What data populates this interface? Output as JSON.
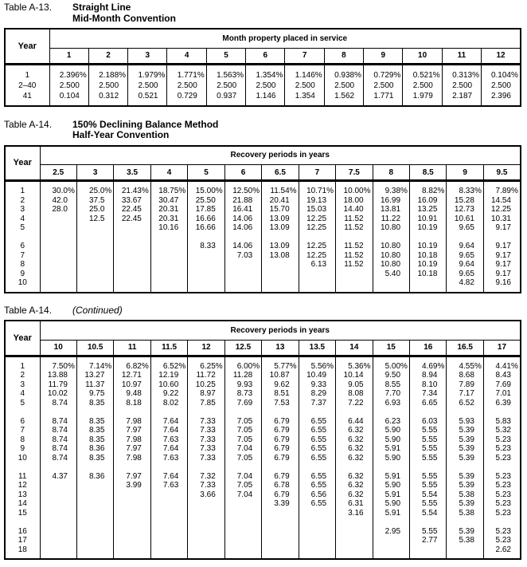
{
  "page": {
    "background": "#ffffff",
    "text_color": "#000000"
  },
  "tables": [
    {
      "id": "a13",
      "label": "Table A-13.",
      "title_lines": [
        "Straight Line",
        "Mid-Month Convention"
      ],
      "year_header": "Year",
      "span_header": "Month property placed in service",
      "columns": [
        "1",
        "2",
        "3",
        "4",
        "5",
        "6",
        "7",
        "8",
        "9",
        "10",
        "11",
        "12"
      ],
      "rows": [
        {
          "year": "1",
          "values": [
            "2.396%",
            "2.188%",
            "1.979%",
            "1.771%",
            "1.563%",
            "1.354%",
            "1.146%",
            "0.938%",
            "0.729%",
            "0.521%",
            "0.313%",
            "0.104%"
          ]
        },
        {
          "year": "2–40",
          "values": [
            "2.500",
            "2.500",
            "2.500",
            "2.500",
            "2.500",
            "2.500",
            "2.500",
            "2.500",
            "2.500",
            "2.500",
            "2.500",
            "2.500"
          ]
        },
        {
          "year": "41",
          "values": [
            "0.104",
            "0.312",
            "0.521",
            "0.729",
            "0.937",
            "1.146",
            "1.354",
            "1.562",
            "1.771",
            "1.979",
            "2.187",
            "2.396"
          ]
        }
      ]
    },
    {
      "id": "a14",
      "label": "Table A-14.",
      "title_lines": [
        "150% Declining Balance Method",
        "Half-Year Convention"
      ],
      "year_header": "Year",
      "span_header": "Recovery periods in years",
      "columns": [
        "2.5",
        "3",
        "3.5",
        "4",
        "5",
        "6",
        "6.5",
        "7",
        "7.5",
        "8",
        "8.5",
        "9",
        "9.5"
      ],
      "rows": [
        {
          "year": "1",
          "values": [
            "30.0%",
            "25.0%",
            "21.43%",
            "18.75%",
            "15.00%",
            "12.50%",
            "11.54%",
            "10.71%",
            "10.00%",
            "9.38%",
            "8.82%",
            "8.33%",
            "7.89%"
          ]
        },
        {
          "year": "2",
          "values": [
            "42.0",
            "37.5",
            "33.67",
            "30.47",
            "25.50",
            "21.88",
            "20.41",
            "19.13",
            "18.00",
            "16.99",
            "16.09",
            "15.28",
            "14.54"
          ]
        },
        {
          "year": "3",
          "values": [
            "28.0",
            "25.0",
            "22.45",
            "20.31",
            "17.85",
            "16.41",
            "15.70",
            "15.03",
            "14.40",
            "13.81",
            "13.25",
            "12.73",
            "12.25"
          ]
        },
        {
          "year": "4",
          "values": [
            "",
            "12.5",
            "22.45",
            "20.31",
            "16.66",
            "14.06",
            "13.09",
            "12.25",
            "11.52",
            "11.22",
            "10.91",
            "10.61",
            "10.31"
          ]
        },
        {
          "year": "5",
          "values": [
            "",
            "",
            "",
            "10.16",
            "16.66",
            "14.06",
            "13.09",
            "12.25",
            "11.52",
            "10.80",
            "10.19",
            "9.65",
            "9.17"
          ]
        },
        {
          "gap": true
        },
        {
          "year": "6",
          "values": [
            "",
            "",
            "",
            "",
            "8.33",
            "14.06",
            "13.09",
            "12.25",
            "11.52",
            "10.80",
            "10.19",
            "9.64",
            "9.17"
          ]
        },
        {
          "year": "7",
          "values": [
            "",
            "",
            "",
            "",
            "",
            "7.03",
            "13.08",
            "12.25",
            "11.52",
            "10.80",
            "10.18",
            "9.65",
            "9.17"
          ]
        },
        {
          "year": "8",
          "values": [
            "",
            "",
            "",
            "",
            "",
            "",
            "",
            "6.13",
            "11.52",
            "10.80",
            "10.19",
            "9.64",
            "9.17"
          ]
        },
        {
          "year": "9",
          "values": [
            "",
            "",
            "",
            "",
            "",
            "",
            "",
            "",
            "",
            "5.40",
            "10.18",
            "9.65",
            "9.17"
          ]
        },
        {
          "year": "10",
          "values": [
            "",
            "",
            "",
            "",
            "",
            "",
            "",
            "",
            "",
            "",
            "",
            "4.82",
            "9.16"
          ]
        }
      ]
    },
    {
      "id": "a14-continued",
      "label": "Table A-14.",
      "continued": "(Continued)",
      "year_header": "Year",
      "span_header": "Recovery periods in years",
      "columns": [
        "10",
        "10.5",
        "11",
        "11.5",
        "12",
        "12.5",
        "13",
        "13.5",
        "14",
        "15",
        "16",
        "16.5",
        "17"
      ],
      "rows": [
        {
          "year": "1",
          "values": [
            "7.50%",
            "7.14%",
            "6.82%",
            "6.52%",
            "6.25%",
            "6.00%",
            "5.77%",
            "5.56%",
            "5.36%",
            "5.00%",
            "4.69%",
            "4.55%",
            "4.41%"
          ]
        },
        {
          "year": "2",
          "values": [
            "13.88",
            "13.27",
            "12.71",
            "12.19",
            "11.72",
            "11.28",
            "10.87",
            "10.49",
            "10.14",
            "9.50",
            "8.94",
            "8.68",
            "8.43"
          ]
        },
        {
          "year": "3",
          "values": [
            "11.79",
            "11.37",
            "10.97",
            "10.60",
            "10.25",
            "9.93",
            "9.62",
            "9.33",
            "9.05",
            "8.55",
            "8.10",
            "7.89",
            "7.69"
          ]
        },
        {
          "year": "4",
          "values": [
            "10.02",
            "9.75",
            "9.48",
            "9.22",
            "8.97",
            "8.73",
            "8.51",
            "8.29",
            "8.08",
            "7.70",
            "7.34",
            "7.17",
            "7.01"
          ]
        },
        {
          "year": "5",
          "values": [
            "8.74",
            "8.35",
            "8.18",
            "8.02",
            "7.85",
            "7.69",
            "7.53",
            "7.37",
            "7.22",
            "6.93",
            "6.65",
            "6.52",
            "6.39"
          ]
        },
        {
          "gap": true
        },
        {
          "year": "6",
          "values": [
            "8.74",
            "8.35",
            "7.98",
            "7.64",
            "7.33",
            "7.05",
            "6.79",
            "6.55",
            "6.44",
            "6.23",
            "6.03",
            "5.93",
            "5.83"
          ]
        },
        {
          "year": "7",
          "values": [
            "8.74",
            "8.35",
            "7.97",
            "7.64",
            "7.33",
            "7.05",
            "6.79",
            "6.55",
            "6.32",
            "5.90",
            "5.55",
            "5.39",
            "5.32"
          ]
        },
        {
          "year": "8",
          "values": [
            "8.74",
            "8.35",
            "7.98",
            "7.63",
            "7.33",
            "7.05",
            "6.79",
            "6.55",
            "6.32",
            "5.90",
            "5.55",
            "5.39",
            "5.23"
          ]
        },
        {
          "year": "9",
          "values": [
            "8.74",
            "8.36",
            "7.97",
            "7.64",
            "7.33",
            "7.04",
            "6.79",
            "6.55",
            "6.32",
            "5.91",
            "5.55",
            "5.39",
            "5.23"
          ]
        },
        {
          "year": "10",
          "values": [
            "8.74",
            "8.35",
            "7.98",
            "7.63",
            "7.33",
            "7.05",
            "6.79",
            "6.55",
            "6.32",
            "5.90",
            "5.55",
            "5.39",
            "5.23"
          ]
        },
        {
          "gap": true
        },
        {
          "year": "11",
          "values": [
            "4.37",
            "8.36",
            "7.97",
            "7.64",
            "7.32",
            "7.04",
            "6.79",
            "6.55",
            "6.32",
            "5.91",
            "5.55",
            "5.39",
            "5.23"
          ]
        },
        {
          "year": "12",
          "values": [
            "",
            "",
            "3.99",
            "7.63",
            "7.33",
            "7.05",
            "6.78",
            "6.55",
            "6.32",
            "5.90",
            "5.55",
            "5.39",
            "5.23"
          ]
        },
        {
          "year": "13",
          "values": [
            "",
            "",
            "",
            "",
            "3.66",
            "7.04",
            "6.79",
            "6.56",
            "6.32",
            "5.91",
            "5.54",
            "5.38",
            "5.23"
          ]
        },
        {
          "year": "14",
          "values": [
            "",
            "",
            "",
            "",
            "",
            "",
            "3.39",
            "6.55",
            "6.31",
            "5.90",
            "5.55",
            "5.39",
            "5.23"
          ]
        },
        {
          "year": "15",
          "values": [
            "",
            "",
            "",
            "",
            "",
            "",
            "",
            "",
            "3.16",
            "5.91",
            "5.54",
            "5.38",
            "5.23"
          ]
        },
        {
          "gap": true
        },
        {
          "year": "16",
          "values": [
            "",
            "",
            "",
            "",
            "",
            "",
            "",
            "",
            "",
            "2.95",
            "5.55",
            "5.39",
            "5.23"
          ]
        },
        {
          "year": "17",
          "values": [
            "",
            "",
            "",
            "",
            "",
            "",
            "",
            "",
            "",
            "",
            "2.77",
            "5.38",
            "5.23"
          ]
        },
        {
          "year": "18",
          "values": [
            "",
            "",
            "",
            "",
            "",
            "",
            "",
            "",
            "",
            "",
            "",
            "",
            "2.62"
          ]
        }
      ]
    }
  ]
}
